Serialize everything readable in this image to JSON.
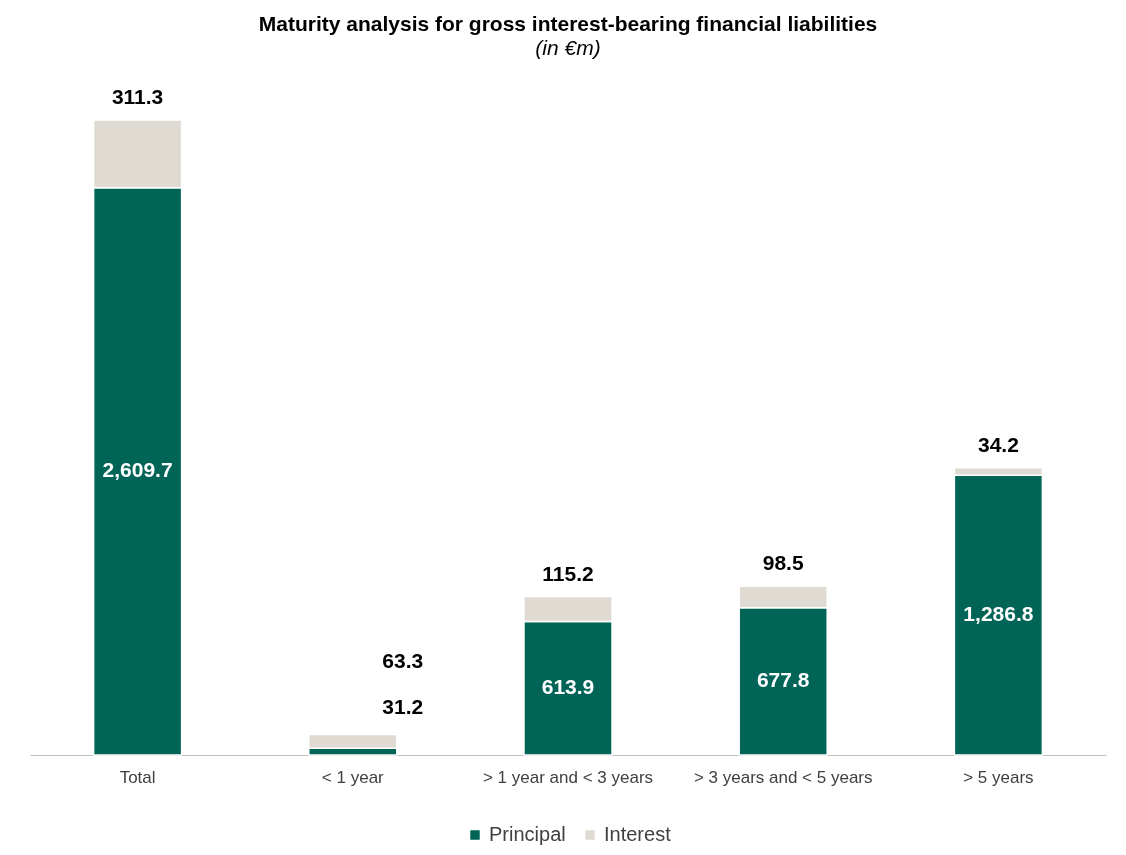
{
  "chart_data": {
    "type": "bar",
    "title": "Maturity analysis for gross interest-bearing financial liabilities",
    "subtitle": "(in €m)",
    "categories": [
      "Total",
      "< 1 year",
      "> 1 year and < 3 years",
      "> 3 years and < 5 years",
      "> 5 years"
    ],
    "stacked": true,
    "data_labels": true,
    "legend": "bottom",
    "grid": false,
    "series": [
      {
        "name": "Principal",
        "color": "#006557",
        "values": [
          2609.7,
          31.2,
          613.9,
          677.8,
          1286.8
        ],
        "value_labels": [
          "2,609.7",
          "31.2",
          "613.9",
          "677.8",
          "1,286.8"
        ]
      },
      {
        "name": "Interest",
        "color": "#e0dbd2",
        "values": [
          311.3,
          63.3,
          115.2,
          98.5,
          34.2
        ],
        "value_labels": [
          "311.3",
          "63.3",
          "115.2",
          "98.5",
          "34.2"
        ]
      }
    ]
  }
}
